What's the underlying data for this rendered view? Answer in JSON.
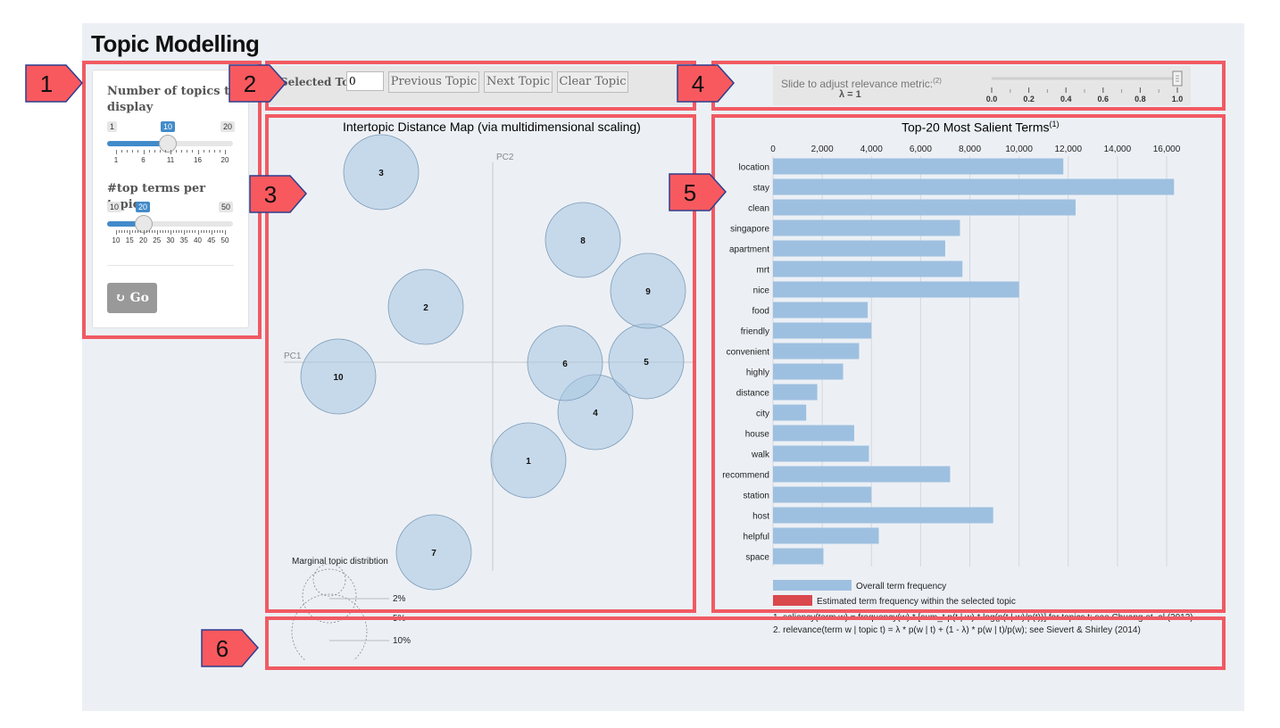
{
  "page": {
    "title": "Topic Modelling"
  },
  "callouts": [
    "1",
    "2",
    "3",
    "4",
    "5",
    "6"
  ],
  "sidebar": {
    "num_topics": {
      "label": "Number of topics to display",
      "min": "1",
      "max": "20",
      "value": "10",
      "value_num": 10,
      "min_num": 1,
      "max_num": 20,
      "tick_labels": [
        "1",
        "6",
        "11",
        "16",
        "20"
      ]
    },
    "top_terms": {
      "label": "#top terms per topic",
      "min": "10",
      "max": "50",
      "value": "20",
      "value_num": 20,
      "min_num": 10,
      "max_num": 50,
      "tick_labels": [
        "10",
        "15",
        "20",
        "25",
        "30",
        "35",
        "40",
        "45",
        "50"
      ]
    },
    "go_button": {
      "label": "Go",
      "icon": "refresh-icon"
    }
  },
  "topic_nav": {
    "label": "Selected Topic:",
    "input_value": "0",
    "prev_button": "Previous Topic",
    "next_button": "Next Topic",
    "clear_button": "Clear Topic"
  },
  "relevance": {
    "label": "Slide to adjust relevance metric:",
    "label_sup": "(2)",
    "lambda_text": "λ = 1",
    "lambda": 1.0,
    "ticks": [
      "0.0",
      "0.2",
      "0.4",
      "0.6",
      "0.8",
      "1.0"
    ]
  },
  "intertopic_map": {
    "title": "Intertopic Distance Map (via multidimensional scaling)",
    "pc1_label": "PC1",
    "pc2_label": "PC2",
    "topics": [
      {
        "id": "1"
      },
      {
        "id": "2"
      },
      {
        "id": "3"
      },
      {
        "id": "4"
      },
      {
        "id": "5"
      },
      {
        "id": "6"
      },
      {
        "id": "7"
      },
      {
        "id": "8"
      },
      {
        "id": "9"
      },
      {
        "id": "10"
      }
    ],
    "marginal": {
      "title": "Marginal topic distribtion",
      "labels": [
        "2%",
        "5%",
        "10%"
      ]
    }
  },
  "chart_data": {
    "type": "bar",
    "title": "Top-20 Most Salient Terms",
    "title_sup": "(1)",
    "categories": [
      "location",
      "stay",
      "clean",
      "singapore",
      "apartment",
      "mrt",
      "nice",
      "food",
      "friendly",
      "convenient",
      "highly",
      "distance",
      "city",
      "house",
      "walk",
      "recommend",
      "station",
      "host",
      "helpful",
      "space"
    ],
    "series": [
      {
        "name": "Overall term frequency",
        "color": "#9ec0e0",
        "values": [
          11800,
          16300,
          12300,
          7600,
          7000,
          7700,
          10000,
          3850,
          4000,
          3500,
          2850,
          1800,
          1350,
          3300,
          3900,
          7200,
          4000,
          8950,
          4300,
          2050
        ]
      }
    ],
    "xlim": [
      0,
      16000
    ],
    "xticks": [
      "0",
      "2,000",
      "4,000",
      "6,000",
      "8,000",
      "10,000",
      "12,000",
      "14,000",
      "16,000"
    ],
    "legend": [
      {
        "label": "Overall term frequency",
        "color": "#9ec0e0"
      },
      {
        "label": "Estimated term frequency within the selected topic",
        "color": "#d9484d"
      }
    ],
    "grid": true
  },
  "footnotes": [
    "1. saliency(term w) = frequency(w) * [sum_t p(t | w) * log(p(t | w)/p(t))] for topics t; see Chuang et. al (2012)",
    "2. relevance(term w | topic t) = λ * p(w | t) + (1 - λ) * p(w | t)/p(w); see Sievert & Shirley (2014)"
  ]
}
